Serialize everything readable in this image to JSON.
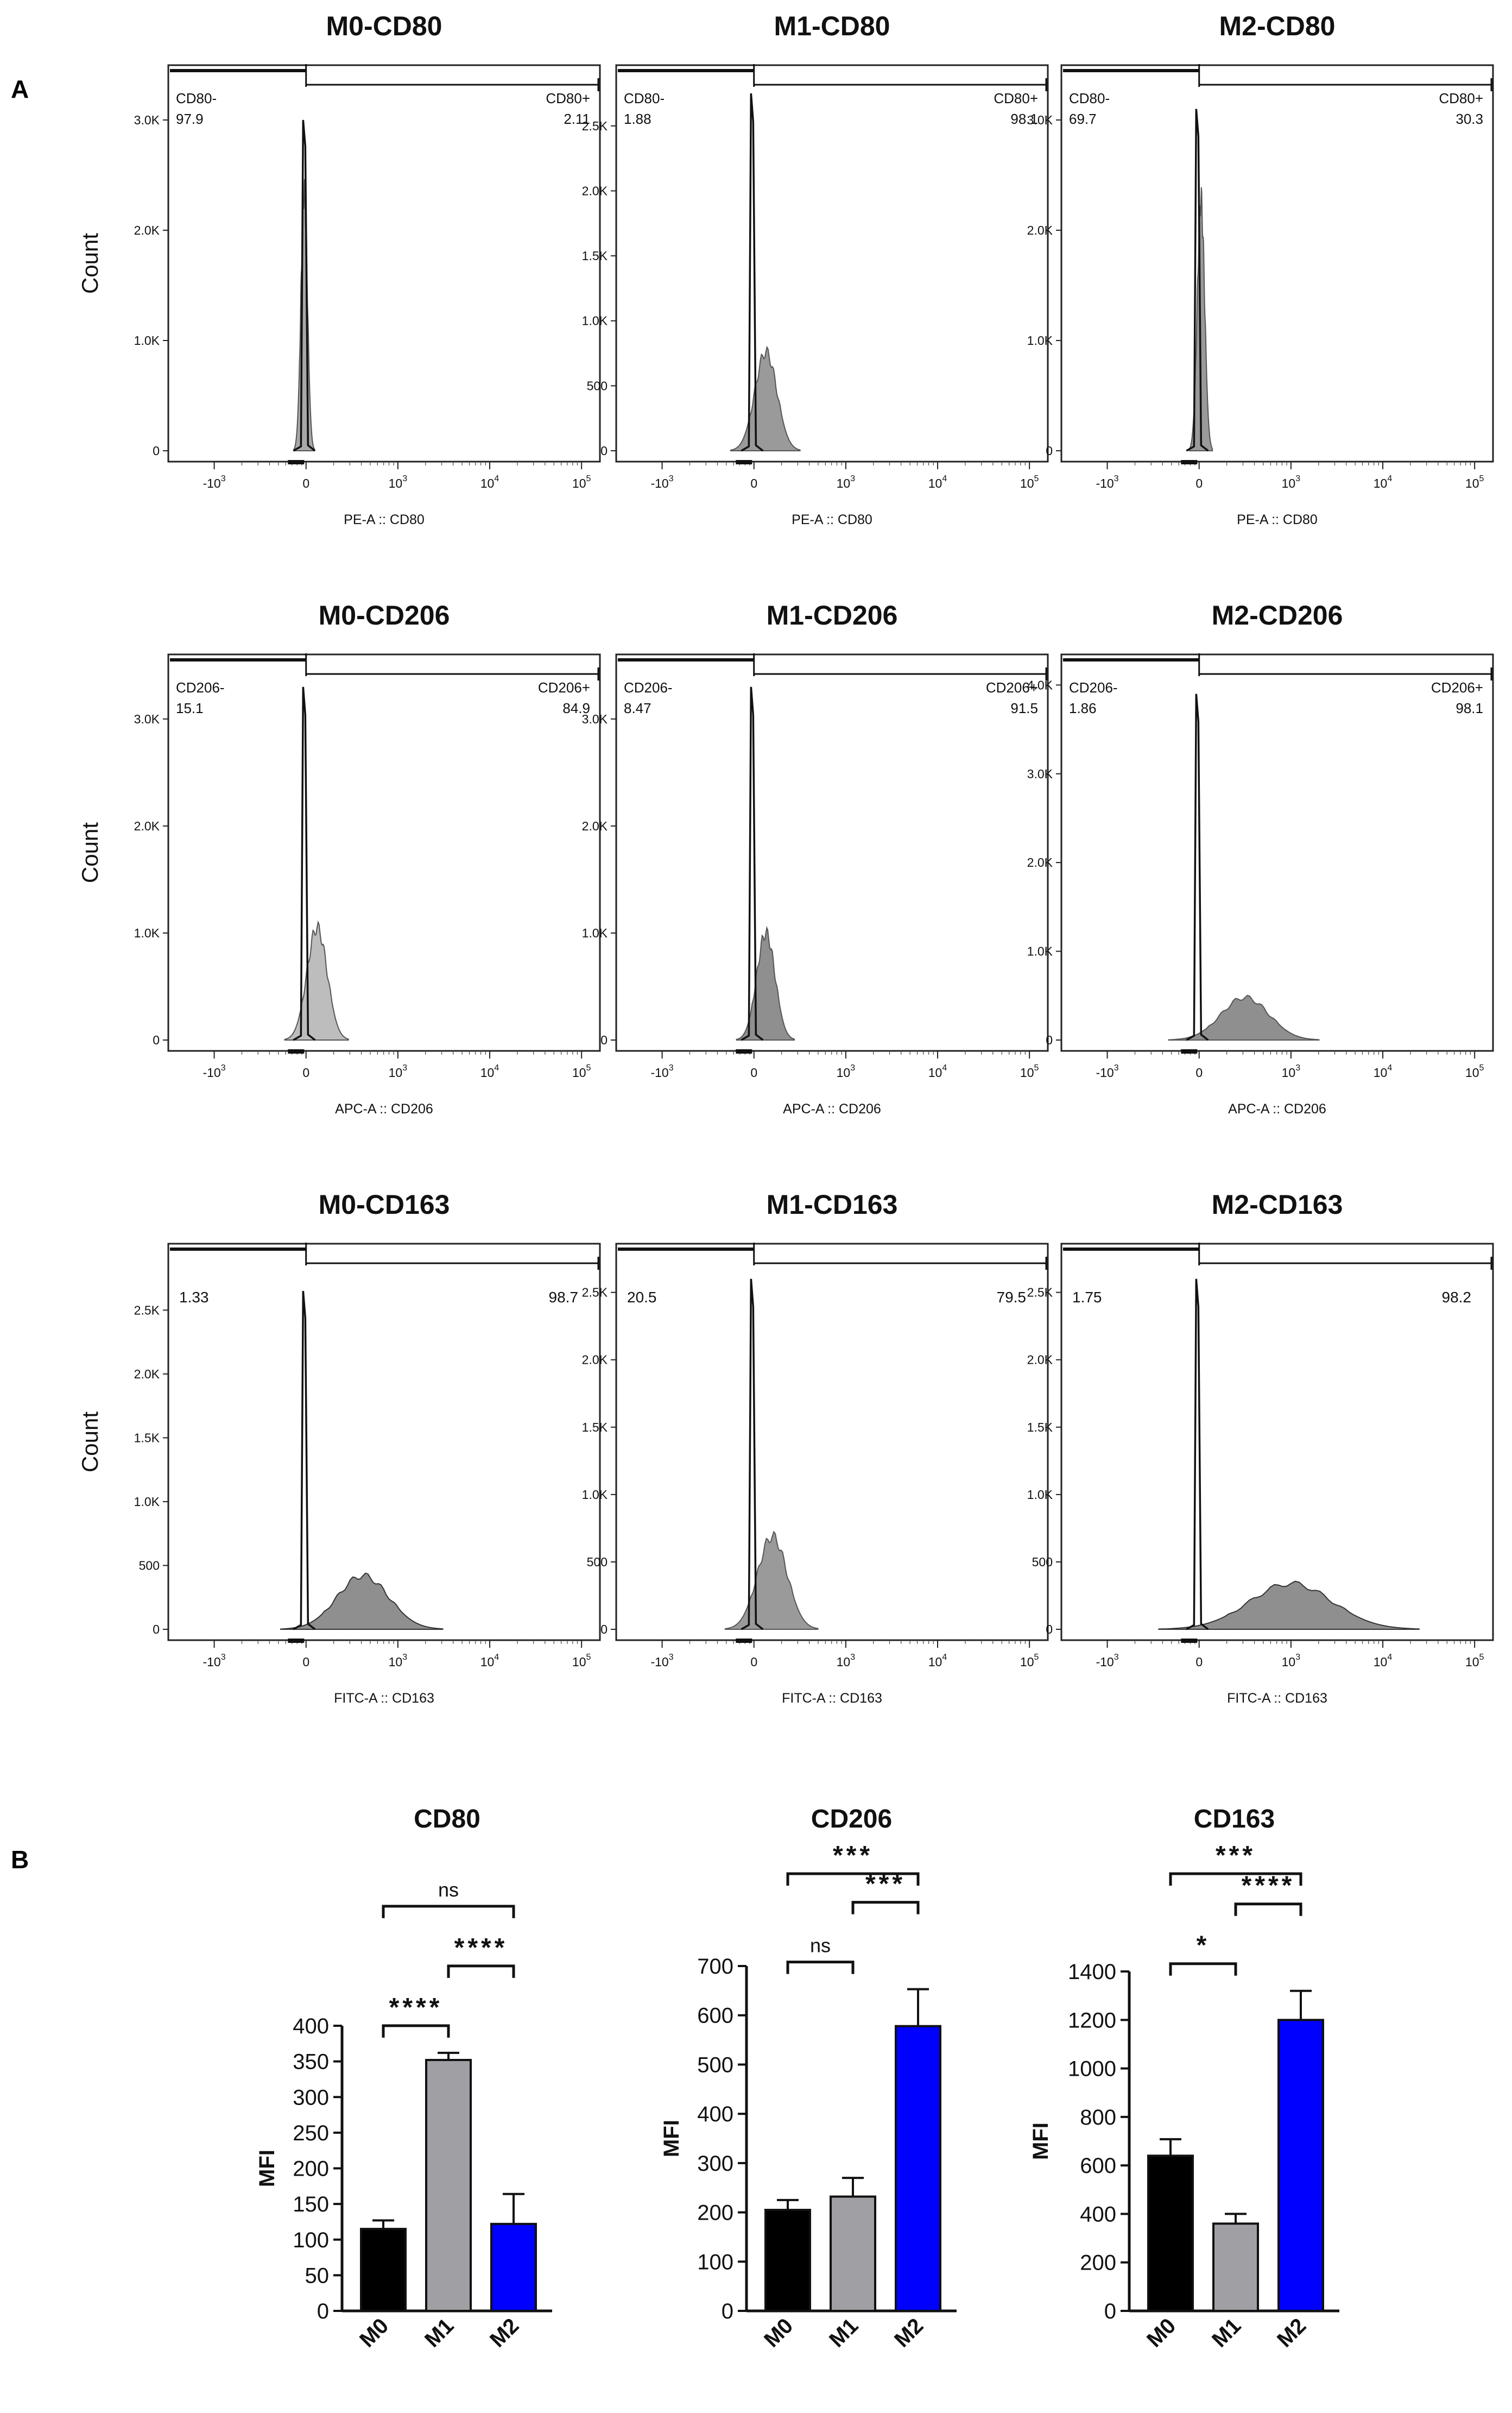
{
  "panels": {
    "A": "A",
    "B": "B"
  },
  "histograms": [
    {
      "title": "M0-CD80",
      "xlabel": "PE-A :: CD80",
      "yticks": [
        "0",
        "1.0K",
        "2.0K",
        "3.0K"
      ],
      "ytick_vals": [
        0,
        1000,
        2000,
        3000
      ],
      "ymax": 3300,
      "gate_neg": {
        "name": "CD80-",
        "value": "97.9"
      },
      "gate_pos": {
        "name": "CD80+",
        "value": "2.11"
      },
      "open_peak": 3000,
      "filled_peak": 2350,
      "filled_center": -0.02,
      "filled_width": 0.035,
      "fill": "#a8a8a8",
      "dark_tail": false
    },
    {
      "title": "M1-CD80",
      "xlabel": "PE-A :: CD80",
      "yticks": [
        "0",
        "500",
        "1.0K",
        "1.5K",
        "2.0K",
        "2.5K"
      ],
      "ytick_vals": [
        0,
        500,
        1000,
        1500,
        2000,
        2500
      ],
      "ymax": 2800,
      "gate_neg": {
        "name": "CD80-",
        "value": "1.88"
      },
      "gate_pos": {
        "name": "CD80+",
        "value": "98.1"
      },
      "open_peak": 2750,
      "filled_peak": 760,
      "filled_center": 0.13,
      "filled_width": 0.12,
      "fill": "#9a9a9a",
      "dark_tail": false
    },
    {
      "title": "M2-CD80",
      "xlabel": "PE-A :: CD80",
      "yticks": [
        "0",
        "1.0K",
        "2.0K",
        "3.0K"
      ],
      "ytick_vals": [
        0,
        1000,
        2000,
        3000
      ],
      "ymax": 3300,
      "gate_neg": {
        "name": "CD80-",
        "value": "69.7"
      },
      "gate_pos": {
        "name": "CD80+",
        "value": "30.3"
      },
      "open_peak": 3100,
      "filled_peak": 2280,
      "filled_center": 0.02,
      "filled_width": 0.04,
      "fill": "#9a9a9a",
      "dark_tail": false
    },
    {
      "title": "M0-CD206",
      "xlabel": "APC-A :: CD206",
      "yticks": [
        "0",
        "1.0K",
        "2.0K",
        "3.0K"
      ],
      "ytick_vals": [
        0,
        1000,
        2000,
        3000
      ],
      "ymax": 3400,
      "gate_neg": {
        "name": "CD206-",
        "value": "15.1"
      },
      "gate_pos": {
        "name": "CD206+",
        "value": "84.9"
      },
      "open_peak": 3300,
      "filled_peak": 1050,
      "filled_center": 0.12,
      "filled_width": 0.11,
      "fill": "#bdbdbd",
      "dark_tail": false
    },
    {
      "title": "M1-CD206",
      "xlabel": "APC-A :: CD206",
      "yticks": [
        "0",
        "1.0K",
        "2.0K",
        "3.0K"
      ],
      "ytick_vals": [
        0,
        1000,
        2000,
        3000
      ],
      "ymax": 3400,
      "gate_neg": {
        "name": "CD206-",
        "value": "8.47"
      },
      "gate_pos": {
        "name": "CD206+",
        "value": "91.5"
      },
      "open_peak": 3300,
      "filled_peak": 1000,
      "filled_center": 0.13,
      "filled_width": 0.1,
      "fill": "#8f8f8f",
      "dark_tail": false
    },
    {
      "title": "M2-CD206",
      "xlabel": "APC-A :: CD206",
      "yticks": [
        "0",
        "1.0K",
        "2.0K",
        "3.0K",
        "4.0K"
      ],
      "ytick_vals": [
        0,
        1000,
        2000,
        3000,
        4000
      ],
      "ymax": 4100,
      "gate_neg": {
        "name": "CD206-",
        "value": "1.86"
      },
      "gate_pos": {
        "name": "CD206+",
        "value": "98.1"
      },
      "open_peak": 3900,
      "filled_peak": 480,
      "filled_center": 0.5,
      "filled_width": 0.26,
      "fill": "#8f8f8f",
      "dark_tail": false
    },
    {
      "title": "M0-CD163",
      "xlabel": "FITC-A :: CD163",
      "yticks": [
        "0",
        "500",
        "1.0K",
        "1.5K",
        "2.0K",
        "2.5K"
      ],
      "ytick_vals": [
        0,
        500,
        1000,
        1500,
        2000,
        2500
      ],
      "ymax": 2850,
      "gate_neg": {
        "name": "",
        "value": "1.33"
      },
      "gate_pos": {
        "name": "",
        "value": "98.7"
      },
      "open_peak": 2650,
      "filled_peak": 420,
      "filled_center": 0.62,
      "filled_width": 0.28,
      "fill": "#8f8f8f",
      "dark_tail": true
    },
    {
      "title": "M1-CD163",
      "xlabel": "FITC-A :: CD163",
      "yticks": [
        "0",
        "500",
        "1.0K",
        "1.5K",
        "2.0K",
        "2.5K"
      ],
      "ytick_vals": [
        0,
        500,
        1000,
        1500,
        2000,
        2500
      ],
      "ymax": 2700,
      "gate_neg": {
        "name": "",
        "value": "20.5"
      },
      "gate_pos": {
        "name": "",
        "value": "79.5"
      },
      "open_peak": 2600,
      "filled_peak": 690,
      "filled_center": 0.2,
      "filled_width": 0.16,
      "fill": "#9a9a9a",
      "dark_tail": false
    },
    {
      "title": "M2-CD163",
      "xlabel": "FITC-A :: CD163",
      "yticks": [
        "0",
        "500",
        "1.0K",
        "1.5K",
        "2.0K",
        "2.5K"
      ],
      "ytick_vals": [
        0,
        500,
        1000,
        1500,
        2000,
        2500
      ],
      "ymax": 2700,
      "gate_neg": {
        "name": "",
        "value": "1.75"
      },
      "gate_pos": {
        "name": "",
        "value": "98.2"
      },
      "open_peak": 2600,
      "filled_peak": 340,
      "filled_center": 1.0,
      "filled_width": 0.45,
      "fill": "#8f8f8f",
      "dark_tail": true
    }
  ],
  "histogram_axis": {
    "ylabel": "Count",
    "xticks": [
      {
        "base": "-10",
        "exp": "3",
        "val": -1
      },
      {
        "base": "0",
        "exp": "",
        "val": 0
      },
      {
        "base": "10",
        "exp": "3",
        "val": 1
      },
      {
        "base": "10",
        "exp": "4",
        "val": 2
      },
      {
        "base": "10",
        "exp": "5",
        "val": 3
      }
    ],
    "xrange": [
      -1.5,
      3.2
    ]
  },
  "chart_data": [
    {
      "type": "bar",
      "title": "CD80",
      "categories": [
        "M0",
        "M1",
        "M2"
      ],
      "values": [
        115,
        352,
        122
      ],
      "errors": [
        12,
        10,
        42
      ],
      "ylabel": "MFI",
      "ylim": [
        0,
        400
      ],
      "yticks": [
        "0",
        "50",
        "100",
        "150",
        "200",
        "250",
        "300",
        "350",
        "400"
      ],
      "ytick_vals": [
        0,
        50,
        100,
        150,
        200,
        250,
        300,
        350,
        400
      ],
      "colors": [
        "#000000",
        "#a0a0a4",
        "#0000ff"
      ],
      "comparisons": [
        {
          "from": 0,
          "to": 1,
          "label": "****",
          "level": 1
        },
        {
          "from": 1,
          "to": 2,
          "label": "****",
          "level": 2
        },
        {
          "from": 0,
          "to": 2,
          "label": "ns",
          "level": 3
        }
      ]
    },
    {
      "type": "bar",
      "title": "CD206",
      "categories": [
        "M0",
        "M1",
        "M2"
      ],
      "values": [
        205,
        232,
        578
      ],
      "errors": [
        20,
        38,
        75
      ],
      "ylabel": "MFI",
      "ylim": [
        0,
        700
      ],
      "yticks": [
        "0",
        "100",
        "200",
        "300",
        "400",
        "500",
        "600",
        "700"
      ],
      "ytick_vals": [
        0,
        100,
        200,
        300,
        400,
        500,
        600,
        700
      ],
      "colors": [
        "#000000",
        "#a0a0a4",
        "#0000ff"
      ],
      "comparisons": [
        {
          "from": 0,
          "to": 1,
          "label": "ns",
          "level": 1
        },
        {
          "from": 1,
          "to": 2,
          "label": "***",
          "level": 2
        },
        {
          "from": 0,
          "to": 2,
          "label": "***",
          "level": 3
        }
      ]
    },
    {
      "type": "bar",
      "title": "CD163",
      "categories": [
        "M0",
        "M1",
        "M2"
      ],
      "values": [
        640,
        360,
        1200
      ],
      "errors": [
        68,
        40,
        120
      ],
      "ylabel": "MFI",
      "ylim": [
        0,
        1400
      ],
      "yticks": [
        "0",
        "200",
        "400",
        "600",
        "800",
        "1000",
        "1200",
        "1400"
      ],
      "ytick_vals": [
        0,
        200,
        400,
        600,
        800,
        1000,
        1200,
        1400
      ],
      "colors": [
        "#000000",
        "#a0a0a4",
        "#0000ff"
      ],
      "comparisons": [
        {
          "from": 0,
          "to": 1,
          "label": "*",
          "level": 1
        },
        {
          "from": 1,
          "to": 2,
          "label": "****",
          "level": 2
        },
        {
          "from": 0,
          "to": 2,
          "label": "***",
          "level": 3
        }
      ]
    }
  ]
}
